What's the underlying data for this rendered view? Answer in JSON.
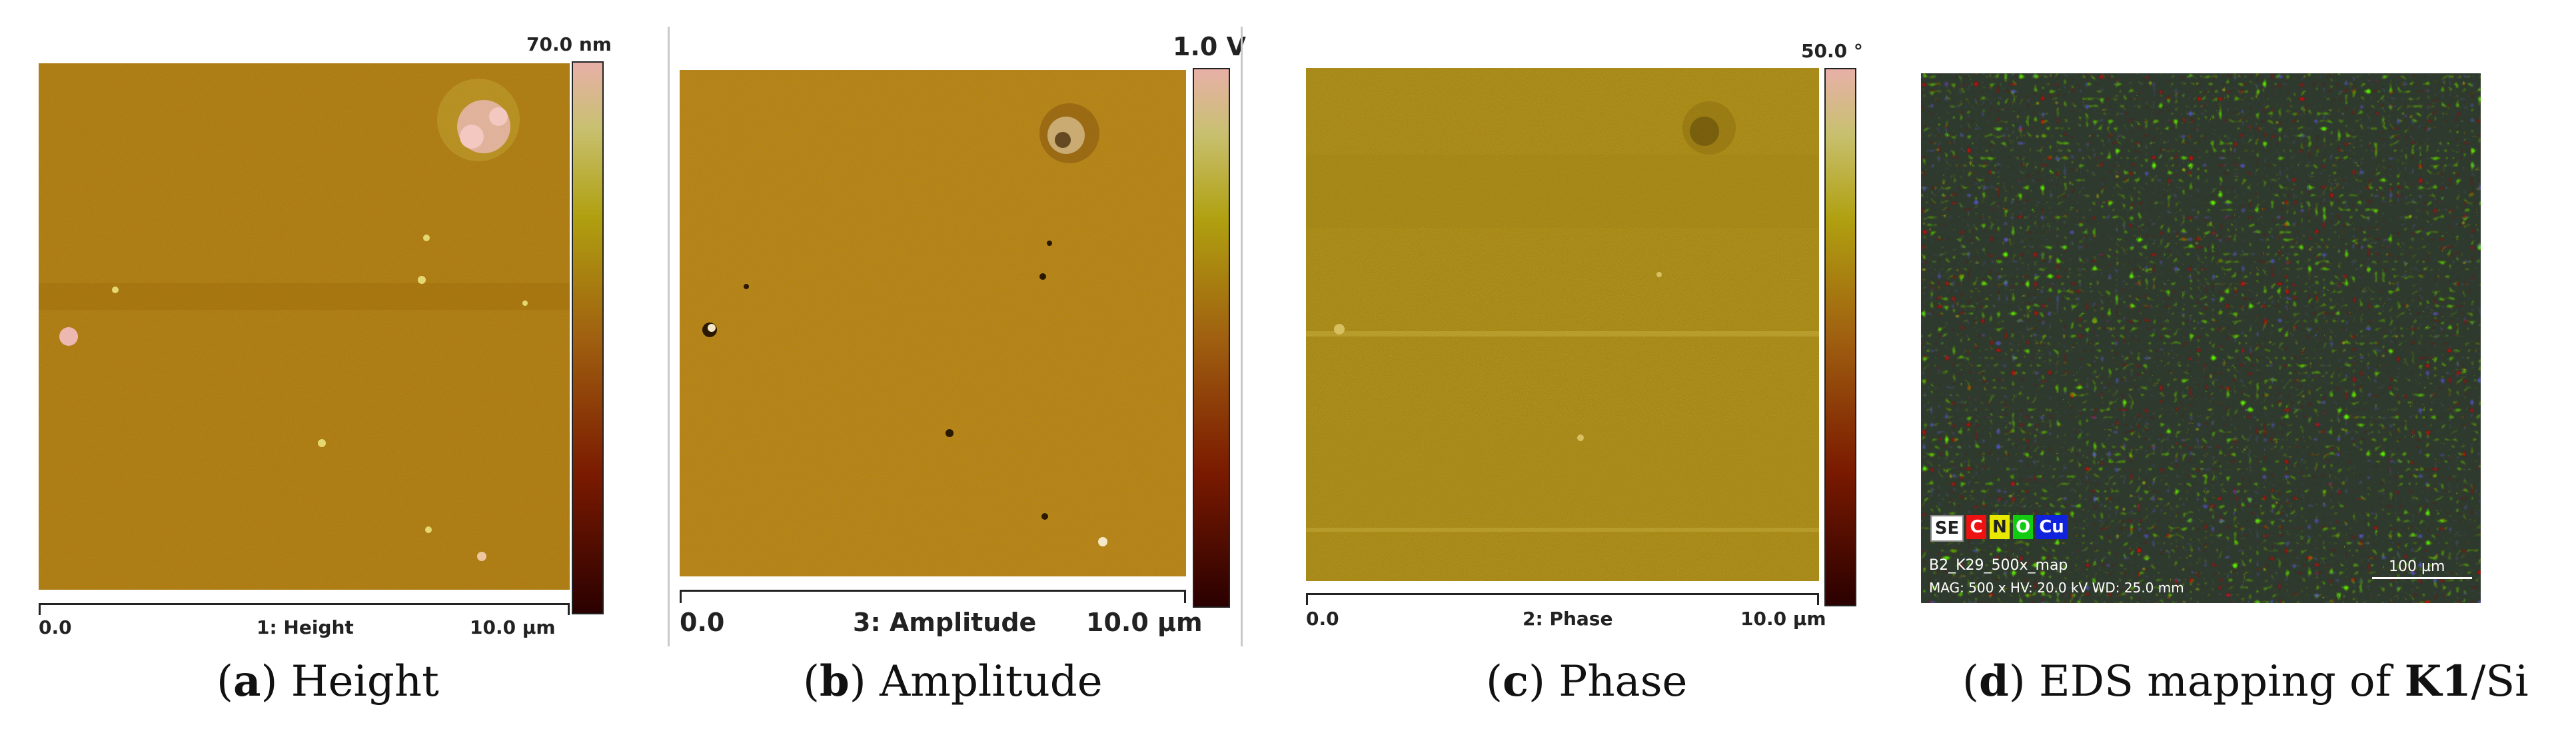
{
  "panels": {
    "height": {
      "scale_max": "70.0 nm",
      "x_start": "0.0",
      "channel": "1: Height",
      "x_end": "10.0 µm",
      "caption_letter": "a",
      "caption_text": "Height"
    },
    "amplitude": {
      "scale_max": "1.0 V",
      "x_start": "0.0",
      "channel": "3: Amplitude",
      "x_end": "10.0 µm",
      "caption_letter": "b",
      "caption_text": "Amplitude"
    },
    "phase": {
      "scale_max": "50.0 °",
      "x_start": "0.0",
      "channel": "2: Phase",
      "x_end": "10.0 µm",
      "caption_letter": "c",
      "caption_text": "Phase"
    },
    "eds": {
      "legend": [
        "SE",
        "C",
        "N",
        "O",
        "Cu"
      ],
      "file_name": "B2_K29_500x_map",
      "meta": "MAG: 500 x  HV: 20.0 kV  WD: 25.0 mm",
      "scale_bar": "100 µm",
      "caption_letter": "d",
      "caption_text_pre": "EDS mapping of ",
      "caption_text_bold": "K1",
      "caption_text_post": "/Si"
    }
  },
  "colors": {
    "afm_base": "#a6720d",
    "amp_base": "#b07a20",
    "phase_base": "#9c7a10",
    "eds_bg": "#2e3a2e"
  }
}
